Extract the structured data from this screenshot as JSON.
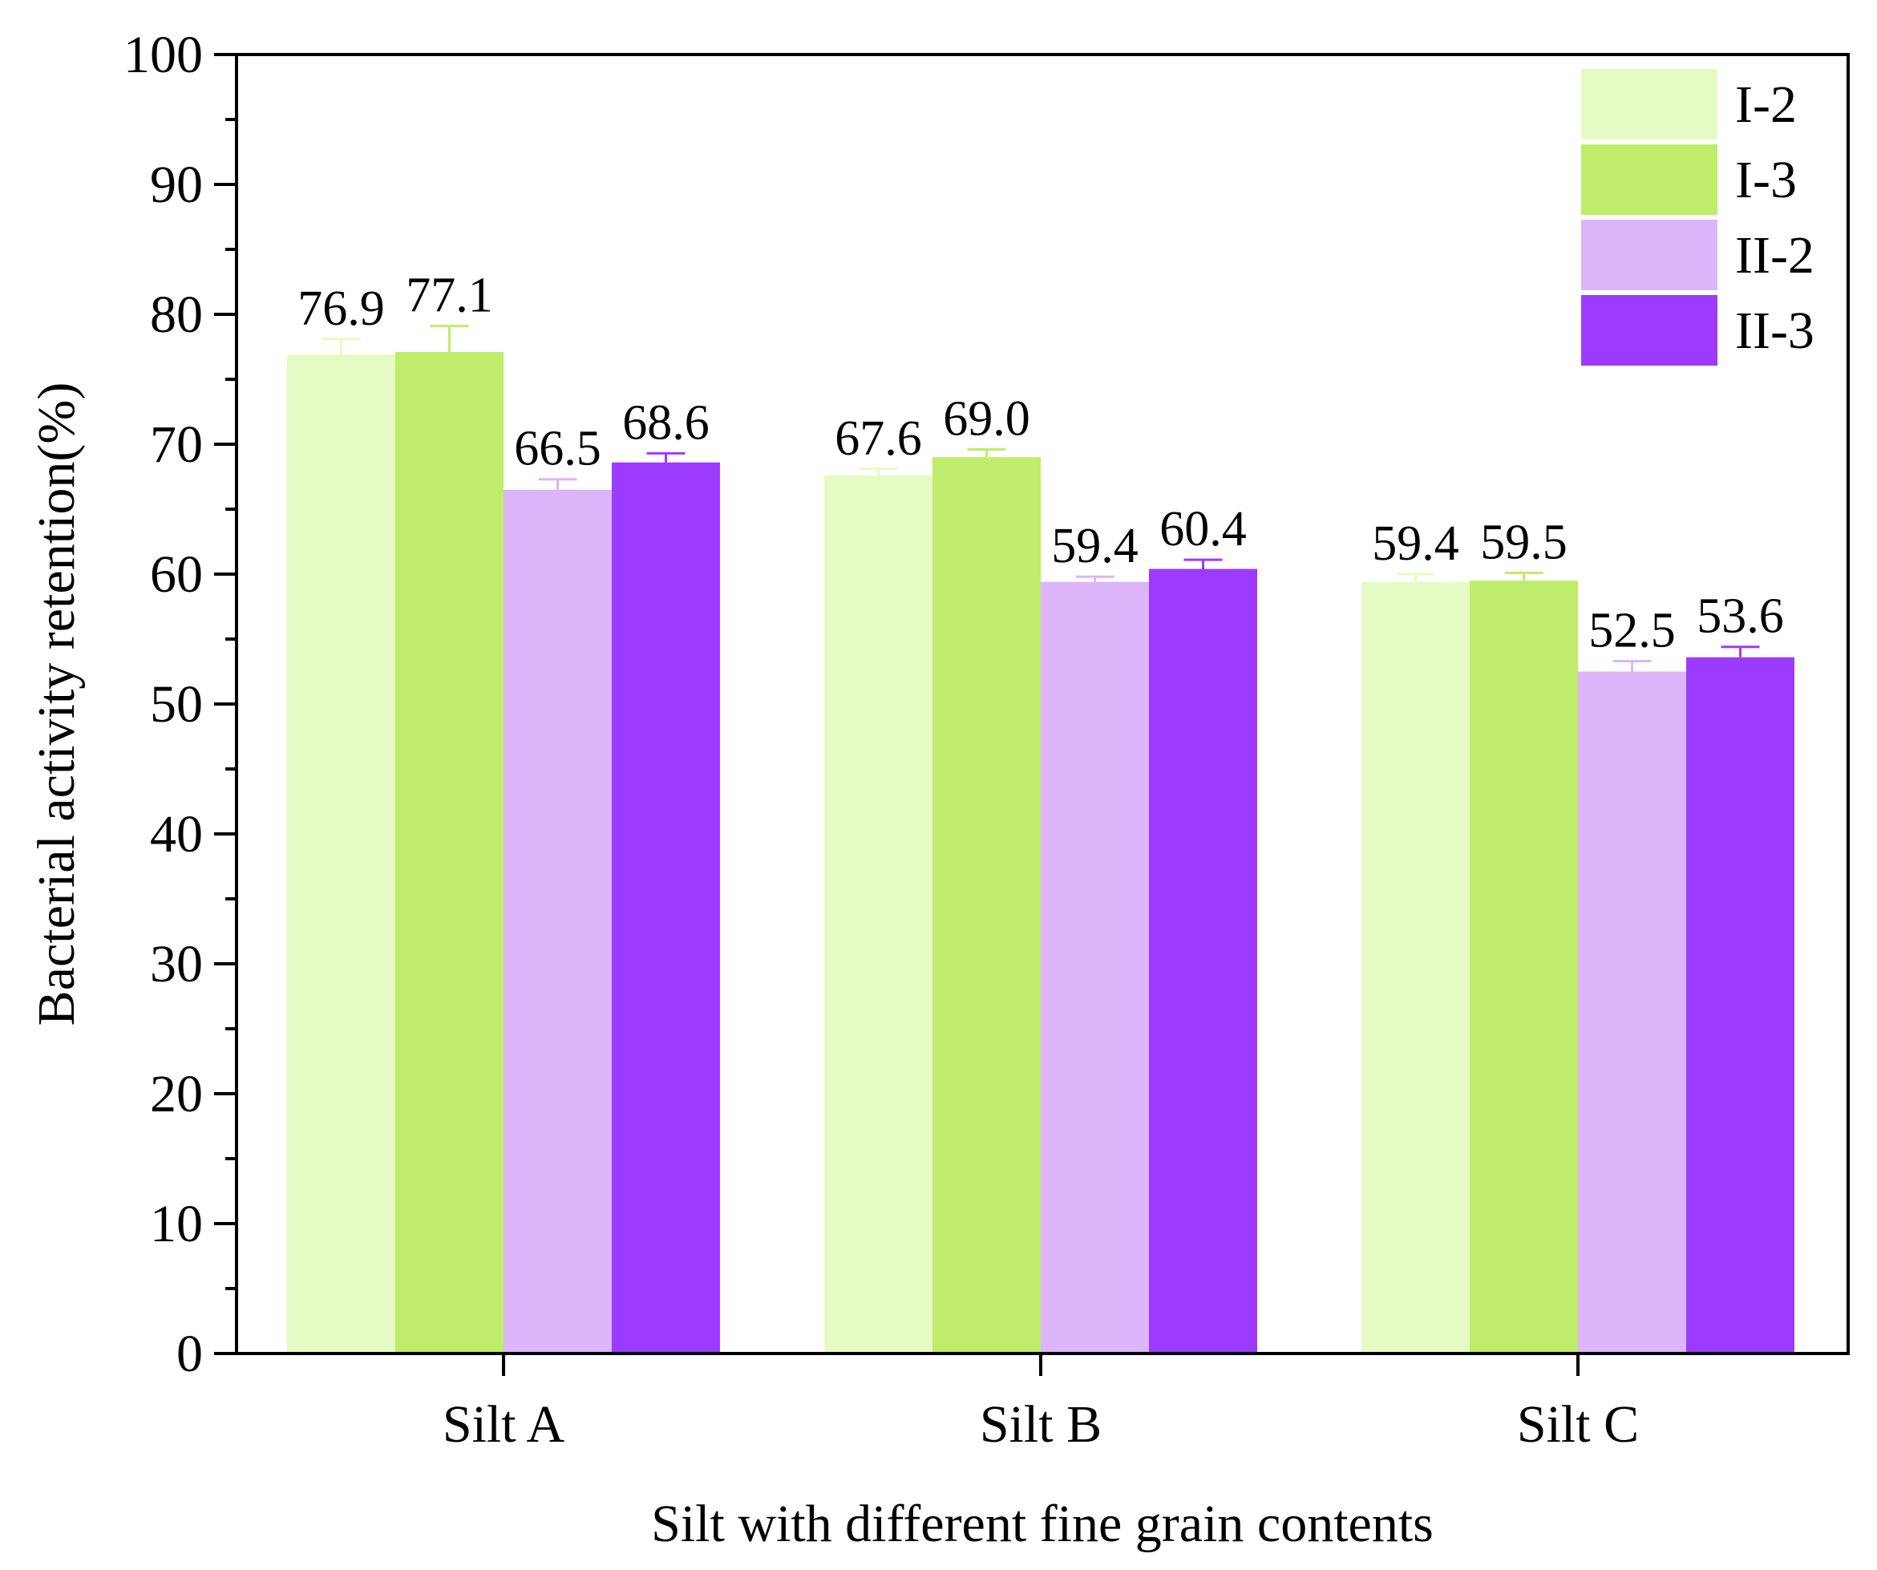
{
  "chart_data": {
    "type": "bar",
    "title": "",
    "xlabel": "Silt with different fine grain contents",
    "ylabel": "Bacterial activity retention(%)",
    "ylim": [
      0,
      100
    ],
    "yticks": [
      "0",
      "10",
      "20",
      "30",
      "40",
      "50",
      "60",
      "70",
      "80",
      "90",
      "100"
    ],
    "categories": [
      "Silt A",
      "Silt B",
      "Silt C"
    ],
    "legend_position": "top-right",
    "series": [
      {
        "name": "I-2",
        "color": "#e6fbc4",
        "values": [
          76.9,
          67.6,
          59.4
        ],
        "labels": [
          "76.9",
          "67.6",
          "59.4"
        ],
        "errors": [
          1.2,
          0.5,
          0.6
        ]
      },
      {
        "name": "I-3",
        "color": "#bfec6a",
        "values": [
          77.1,
          69.0,
          59.5
        ],
        "labels": [
          "77.1",
          "69.0",
          "59.5"
        ],
        "errors": [
          2.0,
          0.6,
          0.6
        ]
      },
      {
        "name": "II-2",
        "color": "#dcb5fb",
        "values": [
          66.5,
          59.4,
          52.5
        ],
        "labels": [
          "66.5",
          "59.4",
          "52.5"
        ],
        "errors": [
          0.8,
          0.4,
          0.8
        ]
      },
      {
        "name": "II-3",
        "color": "#9b3bff",
        "values": [
          68.6,
          60.4,
          53.6
        ],
        "labels": [
          "68.6",
          "60.4",
          "53.6"
        ],
        "errors": [
          0.7,
          0.7,
          0.8
        ]
      }
    ]
  }
}
